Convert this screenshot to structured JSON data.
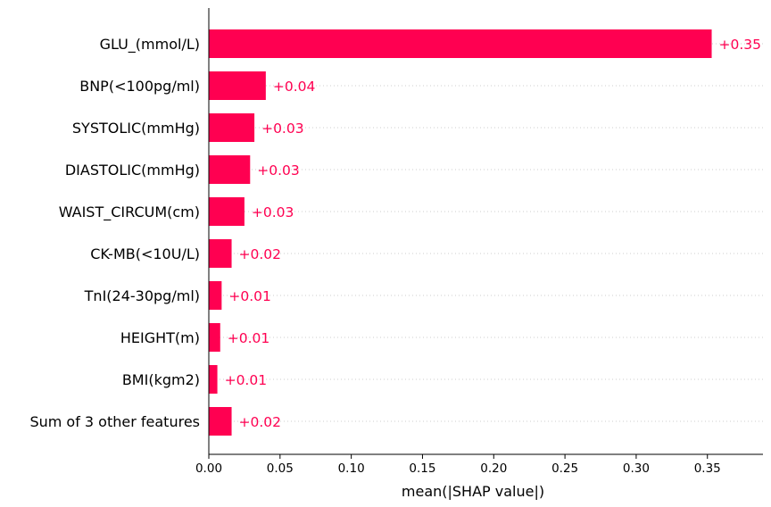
{
  "chart_data": {
    "type": "bar",
    "orientation": "horizontal",
    "categories": [
      "GLU_(mmol/L)",
      "BNP(<100pg/ml)",
      "SYSTOLIC(mmHg)",
      "DIASTOLIC(mmHg)",
      "WAIST_CIRCUM(cm)",
      "CK-MB(<10U/L)",
      "TnI(24-30pg/ml)",
      "HEIGHT(m)",
      "BMI(kgm2)",
      "Sum of 3 other features"
    ],
    "values": [
      0.353,
      0.04,
      0.032,
      0.029,
      0.025,
      0.016,
      0.009,
      0.008,
      0.006,
      0.016
    ],
    "value_labels": [
      "+0.35",
      "+0.04",
      "+0.03",
      "+0.03",
      "+0.03",
      "+0.02",
      "+0.01",
      "+0.01",
      "+0.01",
      "+0.02"
    ],
    "title": "",
    "xlabel": "mean(|SHAP value|)",
    "ylabel": "",
    "xlim": [
      0,
      0.389
    ],
    "xticks": [
      0.0,
      0.05,
      0.1,
      0.15,
      0.2,
      0.25,
      0.3,
      0.35
    ],
    "xtick_labels": [
      "0.00",
      "0.05",
      "0.10",
      "0.15",
      "0.20",
      "0.25",
      "0.30",
      "0.35"
    ],
    "grid": "dotted horizontal row guides",
    "legend": "none",
    "colors": {
      "bar": "#ff0051",
      "value_label": "#ff0051",
      "axis": "#000000",
      "grid": "#cccccc"
    }
  }
}
